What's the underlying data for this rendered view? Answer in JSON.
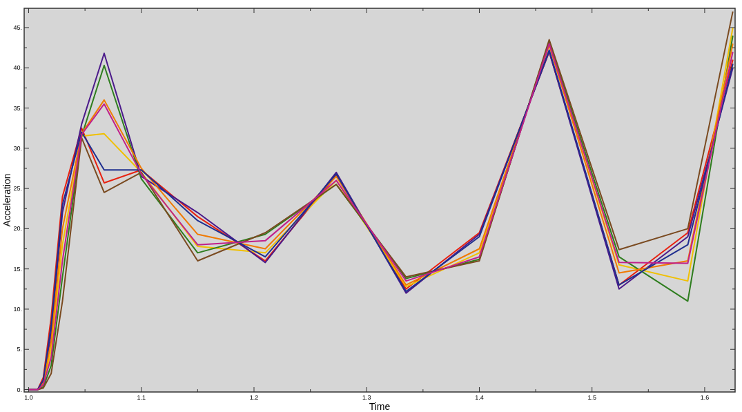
{
  "chart_data": {
    "type": "line",
    "xlabel": "Time",
    "ylabel": "Acceleration",
    "x": [
      1.0,
      1.008,
      1.013,
      1.02,
      1.03,
      1.047,
      1.067,
      1.1,
      1.15,
      1.21,
      1.273,
      1.335,
      1.4,
      1.462,
      1.524,
      1.585,
      1.625
    ],
    "series": [
      {
        "color": "#e8200f",
        "values": [
          0,
          0,
          1.5,
          9,
          24,
          32.5,
          25.7,
          27.3,
          21.5,
          16,
          26.6,
          12.5,
          19.5,
          42,
          13,
          19.5,
          41
        ]
      },
      {
        "color": "#f0c000",
        "values": [
          0,
          0,
          0.5,
          5,
          18,
          31.5,
          31.8,
          27,
          17.8,
          17,
          26,
          12.8,
          17,
          43,
          15.5,
          13.5,
          45
        ]
      },
      {
        "color": "#4b1a8a",
        "values": [
          0,
          0,
          1,
          7,
          22,
          33,
          41.8,
          26.5,
          22,
          15.8,
          27,
          12,
          19.3,
          42,
          12.5,
          19,
          40
        ]
      },
      {
        "color": "#2e7d1e",
        "values": [
          0,
          0,
          0.3,
          3,
          14,
          31.5,
          40.3,
          26.2,
          17,
          19.3,
          25.5,
          13.8,
          16.2,
          43.3,
          16.5,
          11,
          44
        ]
      },
      {
        "color": "#f07a00",
        "values": [
          0,
          0,
          0.8,
          6,
          20,
          31.8,
          36,
          27.5,
          19.3,
          17.5,
          26.5,
          13,
          17.5,
          42.8,
          14.5,
          16,
          43
        ]
      },
      {
        "color": "#7a4a20",
        "values": [
          0,
          0,
          0.2,
          2,
          11,
          31.3,
          24.5,
          27,
          16,
          19.5,
          25.5,
          14,
          16,
          43.5,
          17.4,
          20,
          47
        ]
      },
      {
        "color": "#1f2f8f",
        "values": [
          0,
          0,
          1.2,
          8,
          23,
          32,
          27.3,
          27.3,
          21,
          16.5,
          26.8,
          12.2,
          19,
          42.2,
          13,
          18,
          40.5
        ]
      },
      {
        "color": "#c0208a",
        "values": [
          0,
          0,
          0.6,
          4,
          16,
          31.7,
          35.5,
          26.8,
          18,
          18.5,
          26,
          13.5,
          16.5,
          43,
          15.8,
          15.7,
          42
        ]
      }
    ],
    "xlim": [
      0.996,
      1.627
    ],
    "ylim": [
      -0.3,
      47.4
    ],
    "xticks": [
      {
        "value": 1.0,
        "label": "1.0"
      },
      {
        "value": 1.05,
        "label": null
      },
      {
        "value": 1.1,
        "label": "1.1"
      },
      {
        "value": 1.15,
        "label": null
      },
      {
        "value": 1.2,
        "label": "1.2"
      },
      {
        "value": 1.25,
        "label": null
      },
      {
        "value": 1.3,
        "label": "1.3"
      },
      {
        "value": 1.35,
        "label": null
      },
      {
        "value": 1.4,
        "label": "1.4"
      },
      {
        "value": 1.45,
        "label": null
      },
      {
        "value": 1.5,
        "label": "1.5"
      },
      {
        "value": 1.55,
        "label": null
      },
      {
        "value": 1.6,
        "label": "1.6"
      }
    ],
    "yticks": [
      {
        "value": 0,
        "label": "0."
      },
      {
        "value": 2.5,
        "label": null
      },
      {
        "value": 5,
        "label": "5."
      },
      {
        "value": 7.5,
        "label": null
      },
      {
        "value": 10,
        "label": "10."
      },
      {
        "value": 12.5,
        "label": null
      },
      {
        "value": 15,
        "label": "15."
      },
      {
        "value": 17.5,
        "label": null
      },
      {
        "value": 20,
        "label": "20."
      },
      {
        "value": 22.5,
        "label": null
      },
      {
        "value": 25,
        "label": "25."
      },
      {
        "value": 27.5,
        "label": null
      },
      {
        "value": 30,
        "label": "30."
      },
      {
        "value": 32.5,
        "label": null
      },
      {
        "value": 35,
        "label": "35."
      },
      {
        "value": 37.5,
        "label": null
      },
      {
        "value": 40,
        "label": "40."
      },
      {
        "value": 42.5,
        "label": null
      },
      {
        "value": 45,
        "label": "45."
      }
    ],
    "marker": "none",
    "line_style": "solid",
    "grid": false
  }
}
